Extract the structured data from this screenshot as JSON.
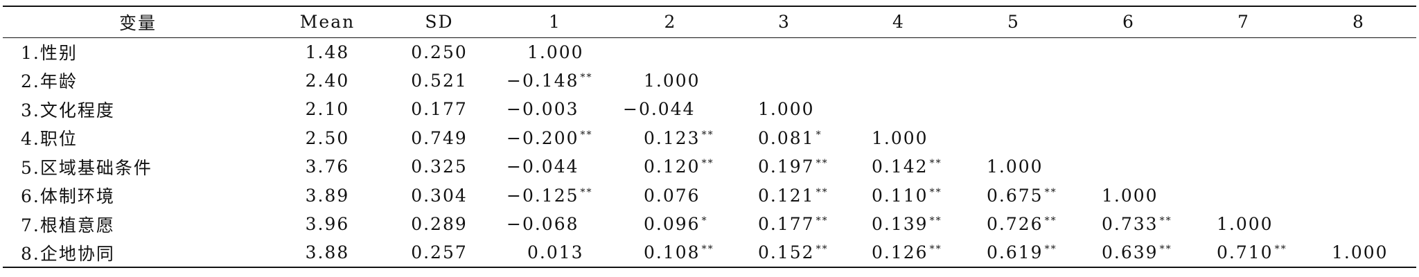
{
  "table": {
    "header": [
      "变量",
      "Mean",
      "SD",
      "1",
      "2",
      "3",
      "4",
      "5",
      "6",
      "7",
      "8"
    ],
    "rows": [
      {
        "label": "1.性别",
        "mean": "1.48",
        "sd": "0.250",
        "corr": [
          {
            "value": "1.000"
          }
        ]
      },
      {
        "label": "2.年龄",
        "mean": "2.40",
        "sd": "0.521",
        "corr": [
          {
            "value": "−0.148",
            "sig": "**"
          },
          {
            "value": "1.000"
          }
        ]
      },
      {
        "label": "3.文化程度",
        "mean": "2.10",
        "sd": "0.177",
        "corr": [
          {
            "value": "−0.003"
          },
          {
            "value": "−0.044"
          },
          {
            "value": "1.000"
          }
        ]
      },
      {
        "label": "4.职位",
        "mean": "2.50",
        "sd": "0.749",
        "corr": [
          {
            "value": "−0.200",
            "sig": "**"
          },
          {
            "value": "0.123",
            "sig": "**"
          },
          {
            "value": "0.081",
            "sig": "*"
          },
          {
            "value": "1.000"
          }
        ]
      },
      {
        "label": "5.区域基础条件",
        "mean": "3.76",
        "sd": "0.325",
        "corr": [
          {
            "value": "−0.044"
          },
          {
            "value": "0.120",
            "sig": "**"
          },
          {
            "value": "0.197",
            "sig": "**"
          },
          {
            "value": "0.142",
            "sig": "**"
          },
          {
            "value": "1.000"
          }
        ]
      },
      {
        "label": "6.体制环境",
        "mean": "3.89",
        "sd": "0.304",
        "corr": [
          {
            "value": "−0.125",
            "sig": "**"
          },
          {
            "value": "0.076"
          },
          {
            "value": "0.121",
            "sig": "**"
          },
          {
            "value": "0.110",
            "sig": "**"
          },
          {
            "value": "0.675",
            "sig": "**"
          },
          {
            "value": "1.000"
          }
        ]
      },
      {
        "label": "7.根植意愿",
        "mean": "3.96",
        "sd": "0.289",
        "corr": [
          {
            "value": "−0.068"
          },
          {
            "value": "0.096",
            "sig": "*"
          },
          {
            "value": "0.177",
            "sig": "**"
          },
          {
            "value": "0.139",
            "sig": "**"
          },
          {
            "value": "0.726",
            "sig": "**"
          },
          {
            "value": "0.733",
            "sig": "**"
          },
          {
            "value": "1.000"
          }
        ]
      },
      {
        "label": "8.企地协同",
        "mean": "3.88",
        "sd": "0.257",
        "corr": [
          {
            "value": "0.013"
          },
          {
            "value": "0.108",
            "sig": "**"
          },
          {
            "value": "0.152",
            "sig": "**"
          },
          {
            "value": "0.126",
            "sig": "**"
          },
          {
            "value": "0.619",
            "sig": "**"
          },
          {
            "value": "0.639",
            "sig": "**"
          },
          {
            "value": "0.710",
            "sig": "**"
          },
          {
            "value": "1.000"
          }
        ]
      }
    ]
  }
}
